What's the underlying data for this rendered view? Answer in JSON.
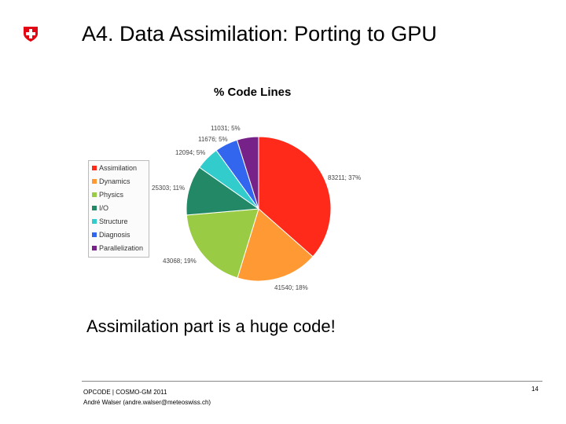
{
  "slide": {
    "title": "A4. Data Assimilation: Porting to GPU",
    "caption": "Assimilation part is a huge code!",
    "footer_line1": "OPCODE | COSMO-GM 2011",
    "footer_line2": "André Walser (andre.walser@meteoswiss.ch)",
    "page_number": "14",
    "logo_icon": "swiss-cross-icon"
  },
  "chart_data": {
    "type": "pie",
    "title": "% Code Lines",
    "legend_position": "left",
    "slices": [
      {
        "name": "Assimilation",
        "value": 83211,
        "label": "83211; 37%",
        "color": "#ff2a1a"
      },
      {
        "name": "Dynamics",
        "value": 41540,
        "label": "41540; 18%",
        "color": "#ff9933"
      },
      {
        "name": "Physics",
        "value": 43068,
        "label": "43068; 19%",
        "color": "#99cc44"
      },
      {
        "name": "I/O",
        "value": 25303,
        "label": "25303; 11%",
        "color": "#228866"
      },
      {
        "name": "Structure",
        "value": 12094,
        "label": "12094; 5%",
        "color": "#33cccc"
      },
      {
        "name": "Diagnosis",
        "value": 11676,
        "label": "11676; 5%",
        "color": "#3366ee"
      },
      {
        "name": "Parallelization",
        "value": 11031,
        "label": "11031; 5%",
        "color": "#772288"
      }
    ]
  }
}
